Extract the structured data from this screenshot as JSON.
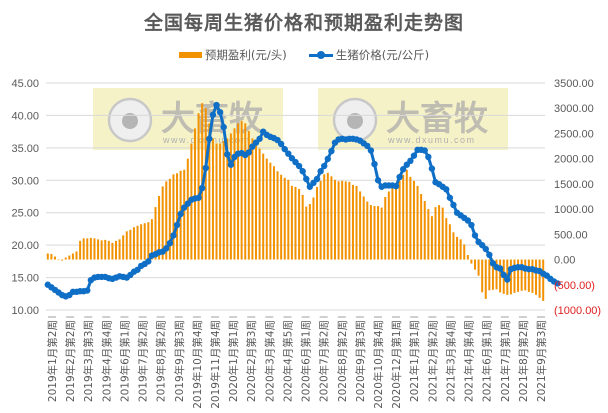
{
  "chart_data": {
    "type": "bar+line",
    "title": "全国每周生猪价格和预期盈利走势图",
    "legend": [
      "预期盈利(元/头)",
      "生猪价格(元/公斤)"
    ],
    "legend_position": "top",
    "grid": true,
    "colors": {
      "profit": "#F39200",
      "price": "#0F6FC6",
      "grid": "#D9D9D9",
      "negative_tick": "#E02020",
      "watermark_bg": "#F3EDB5"
    },
    "left_axis": {
      "label": "生猪价格(元/公斤)",
      "ylim": [
        10,
        45
      ],
      "ticks": [
        "45.00",
        "40.00",
        "35.00",
        "30.00",
        "25.00",
        "20.00",
        "15.00",
        "10.00"
      ]
    },
    "right_axis": {
      "label": "预期盈利(元/头)",
      "ylim": [
        -1000,
        3500
      ],
      "ticks": [
        "3500.00",
        "3000.00",
        "2500.00",
        "2000.00",
        "1500.00",
        "1000.00",
        "500.00",
        "0.00",
        "(500.00)",
        "(1000.00)"
      ]
    },
    "x_tick_labels": [
      "2019年1月第2周",
      "2019年2月第2周",
      "2019年3月第3周",
      "2019年4月第4周",
      "2019年6月第1周",
      "2019年7月第2周",
      "2019年8月第2周",
      "2019年9月第3周",
      "2019年10月第4周",
      "2019年11月第4周",
      "2020年1月第1周",
      "2020年2月第3周",
      "2020年3月第4周",
      "2020年4月第5周",
      "2020年6月第1周",
      "2020年7月第2周",
      "2020年8月第2周",
      "2020年9月第3周",
      "2020年10月第4周",
      "2020年12月第1周",
      "2021年1月第1周",
      "2021年2月第2周",
      "2021年3月第4周",
      "2021年4月第4周",
      "2021年6月第1周",
      "2021年7月第1周",
      "2021年8月第2周",
      "2021年9月第3周"
    ],
    "series": [
      {
        "name": "生猪价格(元/公斤)",
        "type": "line",
        "axis": "left",
        "values": [
          13.9,
          13.5,
          13.1,
          12.7,
          12.3,
          12.1,
          12.3,
          12.8,
          12.8,
          12.9,
          12.9,
          13.0,
          14.6,
          15.0,
          15.1,
          15.1,
          15.1,
          14.9,
          14.8,
          15.0,
          15.2,
          15.1,
          15.0,
          15.4,
          15.9,
          16.2,
          16.8,
          17.1,
          17.5,
          18.4,
          18.6,
          18.9,
          19.0,
          19.5,
          20.3,
          21.5,
          23.1,
          24.8,
          25.8,
          26.4,
          27.0,
          27.2,
          27.3,
          28.8,
          31.9,
          36.4,
          40.1,
          41.6,
          40.5,
          38.2,
          34.0,
          32.4,
          33.6,
          34.1,
          34.2,
          33.9,
          34.3,
          35.2,
          35.8,
          36.4,
          37.5,
          37.0,
          36.7,
          36.5,
          36.2,
          35.6,
          34.8,
          34.1,
          33.4,
          32.8,
          32.2,
          31.4,
          30.2,
          29.0,
          29.6,
          30.2,
          31.4,
          32.2,
          33.3,
          34.5,
          35.8,
          36.3,
          36.4,
          36.3,
          36.4,
          36.4,
          36.3,
          36.1,
          35.7,
          35.3,
          34.6,
          32.5,
          30.0,
          29.0,
          29.2,
          29.2,
          29.2,
          29.1,
          30.5,
          31.7,
          32.4,
          33.0,
          33.8,
          34.7,
          34.7,
          34.6,
          33.6,
          31.8,
          29.7,
          29.4,
          29.0,
          28.6,
          27.3,
          26.2,
          25.0,
          24.6,
          24.2,
          23.8,
          23.1,
          21.5,
          20.5,
          20.0,
          19.4,
          18.5,
          17.2,
          16.6,
          16.4,
          15.4,
          14.7,
          16.3,
          16.5,
          16.6,
          16.6,
          16.4,
          16.3,
          16.3,
          16.1,
          16.0,
          15.6,
          15.3,
          14.8,
          14.4,
          14.1
        ]
      },
      {
        "name": "预期盈利(元/头)",
        "type": "bar",
        "axis": "right",
        "values": [
          120,
          110,
          60,
          -10,
          -20,
          40,
          80,
          120,
          160,
          370,
          420,
          420,
          430,
          420,
          400,
          380,
          390,
          370,
          330,
          370,
          400,
          480,
          560,
          590,
          640,
          670,
          700,
          720,
          740,
          800,
          1040,
          1260,
          1450,
          1550,
          1600,
          1690,
          1710,
          1760,
          1780,
          2000,
          2300,
          2600,
          2900,
          3100,
          3000,
          2700,
          2400,
          2300,
          2300,
          2350,
          2400,
          2500,
          2600,
          2700,
          2750,
          2700,
          2550,
          2400,
          2300,
          2200,
          2100,
          2000,
          1920,
          1850,
          1750,
          1680,
          1620,
          1580,
          1460,
          1440,
          1400,
          1280,
          1050,
          1100,
          1230,
          1440,
          1560,
          1690,
          1720,
          1650,
          1580,
          1550,
          1560,
          1550,
          1540,
          1480,
          1460,
          1350,
          1250,
          1150,
          1080,
          1060,
          1060,
          1030,
          1240,
          1350,
          1500,
          1520,
          1560,
          1680,
          1780,
          1640,
          1560,
          1460,
          1300,
          1160,
          1000,
          860,
          1040,
          1080,
          1030,
          820,
          700,
          540,
          450,
          400,
          300,
          90,
          -80,
          -200,
          -320,
          -650,
          -780,
          -610,
          -600,
          -590,
          -650,
          -680,
          -700,
          -690,
          -660,
          -640,
          -620,
          -610,
          -640,
          -660,
          -700,
          -760,
          -820
        ]
      }
    ],
    "watermarks": [
      {
        "text": "大畜牧",
        "url_text": "www.dxumu.com"
      }
    ]
  },
  "header": {
    "title": "全国每周生猪价格和预期盈利走势图"
  },
  "legend": {
    "profit": "预期盈利(元/头)",
    "price": "生猪价格(元/公斤)"
  }
}
